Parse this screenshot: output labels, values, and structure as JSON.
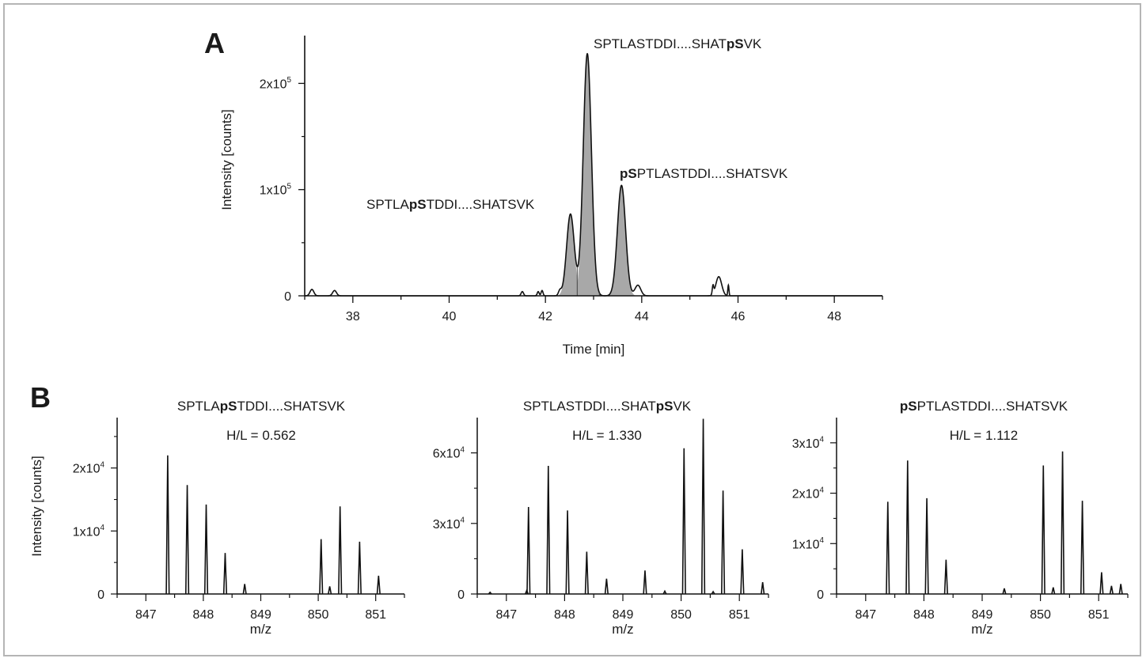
{
  "chart_data": [
    {
      "type": "line",
      "panel_label": "A",
      "xlabel": "Time [min]",
      "ylabel": "Intensity [counts]",
      "xlim": [
        37,
        49
      ],
      "ylim": [
        0,
        245000
      ],
      "xticks": [
        {
          "v": 38,
          "label": "38"
        },
        {
          "v": 40,
          "label": "40"
        },
        {
          "v": 42,
          "label": "42"
        },
        {
          "v": 44,
          "label": "44"
        },
        {
          "v": 46,
          "label": "46"
        },
        {
          "v": 48,
          "label": "48"
        }
      ],
      "yticks": [
        {
          "v": 0,
          "base": "0",
          "exp": ""
        },
        {
          "v": 100000,
          "base": "1x10",
          "exp": "5"
        },
        {
          "v": 200000,
          "base": "2x10",
          "exp": "5"
        }
      ],
      "peaks": [
        {
          "t": 37.15,
          "h": 6000,
          "w": 0.04,
          "filled": false
        },
        {
          "t": 37.62,
          "h": 5000,
          "w": 0.04,
          "filled": false
        },
        {
          "t": 41.52,
          "h": 4000,
          "w": 0.025,
          "filled": false
        },
        {
          "t": 41.85,
          "h": 4000,
          "w": 0.02,
          "filled": false
        },
        {
          "t": 41.93,
          "h": 5000,
          "w": 0.02,
          "filled": false
        },
        {
          "t": 42.3,
          "h": 4500,
          "w": 0.03,
          "filled": false
        },
        {
          "t": 42.52,
          "h": 77000,
          "w": 0.08,
          "filled": true
        },
        {
          "t": 42.87,
          "h": 228000,
          "w": 0.085,
          "filled": true
        },
        {
          "t": 43.58,
          "h": 104000,
          "w": 0.085,
          "filled": true
        },
        {
          "t": 43.92,
          "h": 10000,
          "w": 0.06,
          "filled": false
        },
        {
          "t": 45.48,
          "h": 8000,
          "w": 0.015,
          "filled": false
        },
        {
          "t": 45.6,
          "h": 18000,
          "w": 0.06,
          "filled": false
        },
        {
          "t": 45.8,
          "h": 10000,
          "w": 0.012,
          "filled": false
        }
      ],
      "annotations": [
        {
          "segments": [
            {
              "text": "SPTLASTDDI....SHAT",
              "bold": false
            },
            {
              "text": "pS",
              "bold": true
            },
            {
              "text": "VK",
              "bold": false
            }
          ]
        },
        {
          "segments": [
            {
              "text": "pS",
              "bold": true
            },
            {
              "text": "PTLASTDDI....SHATSVK",
              "bold": false
            }
          ]
        },
        {
          "segments": [
            {
              "text": "SPTLA",
              "bold": false
            },
            {
              "text": "pS",
              "bold": true
            },
            {
              "text": "TDDI....SHATSVK",
              "bold": false
            }
          ]
        }
      ]
    },
    {
      "type": "bar",
      "panel_label": "B",
      "title_segments": [
        {
          "text": "SPTLA",
          "bold": false
        },
        {
          "text": "pS",
          "bold": true
        },
        {
          "text": "TDDI....SHATSVK",
          "bold": false
        }
      ],
      "subtitle": "H/L = 0.562",
      "xlabel": "m/z",
      "ylabel": "Intensity [counts]",
      "xlim": [
        846.5,
        851.5
      ],
      "ylim": [
        0,
        28000
      ],
      "xticks": [
        {
          "v": 847,
          "label": "847"
        },
        {
          "v": 848,
          "label": "848"
        },
        {
          "v": 849,
          "label": "849"
        },
        {
          "v": 850,
          "label": "850"
        },
        {
          "v": 851,
          "label": "851"
        }
      ],
      "yticks": [
        {
          "v": 0,
          "base": "0",
          "exp": ""
        },
        {
          "v": 10000,
          "base": "1x10",
          "exp": "4"
        },
        {
          "v": 20000,
          "base": "2x10",
          "exp": "4"
        }
      ],
      "x": [
        847.38,
        847.72,
        848.05,
        848.38,
        848.72,
        850.05,
        850.2,
        850.38,
        850.72,
        851.05
      ],
      "values": [
        22000,
        17300,
        14200,
        6500,
        1600,
        8700,
        1200,
        13900,
        8300,
        2900
      ]
    },
    {
      "type": "bar",
      "title_segments": [
        {
          "text": "SPTLASTDDI....SHAT",
          "bold": false
        },
        {
          "text": "pS",
          "bold": true
        },
        {
          "text": "VK",
          "bold": false
        }
      ],
      "subtitle": "H/L = 1.330",
      "xlabel": "m/z",
      "ylabel": "",
      "xlim": [
        846.5,
        851.5
      ],
      "ylim": [
        0,
        75000
      ],
      "xticks": [
        {
          "v": 847,
          "label": "847"
        },
        {
          "v": 848,
          "label": "848"
        },
        {
          "v": 849,
          "label": "849"
        },
        {
          "v": 850,
          "label": "850"
        },
        {
          "v": 851,
          "label": "851"
        }
      ],
      "yticks": [
        {
          "v": 0,
          "base": "0",
          "exp": ""
        },
        {
          "v": 30000,
          "base": "3x10",
          "exp": "4"
        },
        {
          "v": 60000,
          "base": "6x10",
          "exp": "4"
        }
      ],
      "x": [
        846.72,
        847.35,
        847.38,
        847.72,
        848.05,
        848.38,
        848.72,
        849.38,
        849.72,
        850.05,
        850.38,
        850.55,
        850.72,
        851.05,
        851.4
      ],
      "values": [
        700,
        1500,
        37000,
        54500,
        35500,
        18000,
        6500,
        10000,
        1200,
        62000,
        74500,
        1000,
        44000,
        19000,
        5000
      ]
    },
    {
      "type": "bar",
      "title_segments": [
        {
          "text": "pS",
          "bold": true
        },
        {
          "text": "PTLASTDDI....SHATSVK",
          "bold": false
        }
      ],
      "subtitle": "H/L = 1.112",
      "xlabel": "m/z",
      "ylabel": "",
      "xlim": [
        846.5,
        851.5
      ],
      "ylim": [
        0,
        35000
      ],
      "xticks": [
        {
          "v": 847,
          "label": "847"
        },
        {
          "v": 848,
          "label": "848"
        },
        {
          "v": 849,
          "label": "849"
        },
        {
          "v": 850,
          "label": "850"
        },
        {
          "v": 851,
          "label": "851"
        }
      ],
      "yticks": [
        {
          "v": 0,
          "base": "0",
          "exp": ""
        },
        {
          "v": 10000,
          "base": "1x10",
          "exp": "4"
        },
        {
          "v": 20000,
          "base": "2x10",
          "exp": "4"
        },
        {
          "v": 30000,
          "base": "3x10",
          "exp": "4"
        }
      ],
      "x": [
        847.38,
        847.72,
        848.05,
        848.38,
        849.38,
        850.05,
        850.22,
        850.38,
        850.72,
        851.05,
        851.22,
        851.38
      ],
      "values": [
        18300,
        26500,
        19000,
        6800,
        1100,
        25500,
        1300,
        28300,
        18500,
        4300,
        1600,
        2000
      ]
    }
  ]
}
